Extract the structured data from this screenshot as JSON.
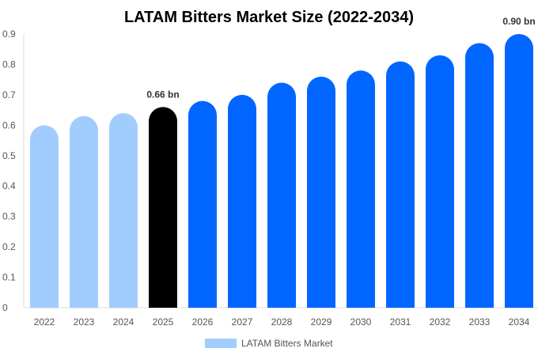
{
  "chart_data": {
    "type": "bar",
    "title": "LATAM Bitters Market Size (2022-2034)",
    "categories": [
      "2022",
      "2023",
      "2024",
      "2025",
      "2026",
      "2027",
      "2028",
      "2029",
      "2030",
      "2031",
      "2032",
      "2033",
      "2034"
    ],
    "series": [
      {
        "name": "LATAM Bitters Market",
        "values": [
          0.6,
          0.63,
          0.64,
          0.66,
          0.68,
          0.7,
          0.74,
          0.76,
          0.78,
          0.81,
          0.83,
          0.87,
          0.9
        ]
      }
    ],
    "data_labels": [
      {
        "category": "2025",
        "text": "0.66 bn"
      },
      {
        "category": "2034",
        "text": "0.90 bn"
      }
    ],
    "ylim": [
      0,
      0.9
    ],
    "yticks": [
      "0",
      "0.1",
      "0.2",
      "0.3",
      "0.4",
      "0.5",
      "0.6",
      "0.7",
      "0.8",
      "0.9"
    ],
    "grid": false,
    "legend_position": "bottom",
    "colors": {
      "historical": "#A0CDFD",
      "current": "#000000",
      "forecast": "#0066FF"
    },
    "bar_color_groups": [
      "historical",
      "historical",
      "historical",
      "current",
      "forecast",
      "forecast",
      "forecast",
      "forecast",
      "forecast",
      "forecast",
      "forecast",
      "forecast",
      "forecast"
    ]
  }
}
